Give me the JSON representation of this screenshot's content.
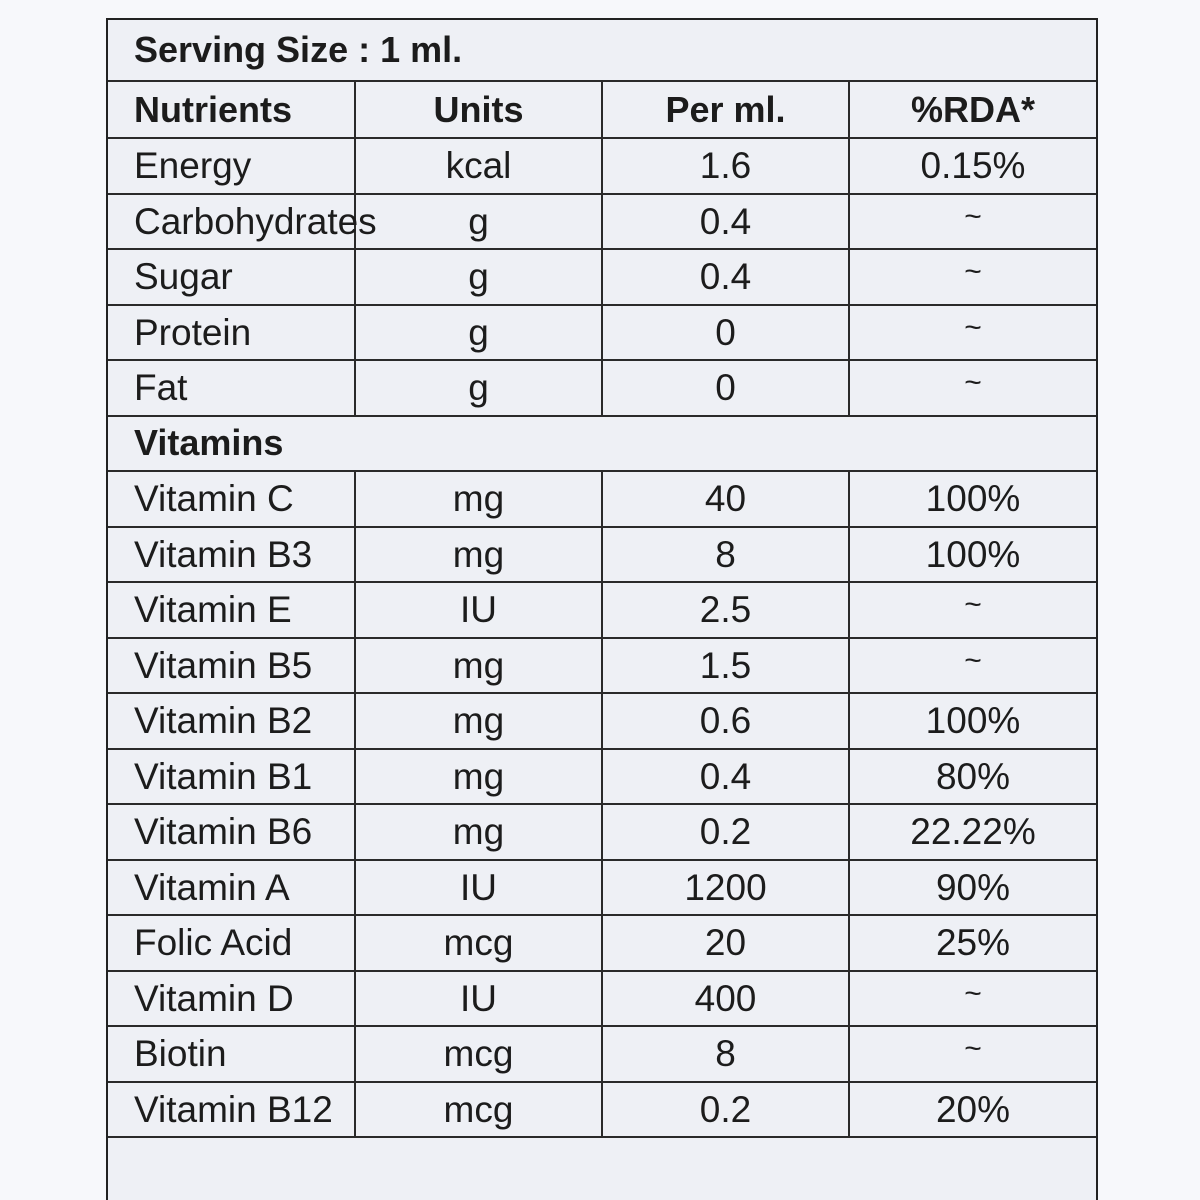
{
  "label": {
    "serving_size": "Serving Size : 1 ml.",
    "headers": {
      "nutrients": "Nutrients",
      "units": "Units",
      "per_ml": "Per ml.",
      "rda": "%RDA*"
    },
    "nutrients": [
      {
        "name": "Energy",
        "unit": "kcal",
        "per_ml": "1.6",
        "rda": "0.15%"
      },
      {
        "name": "Carbohydrates",
        "unit": "g",
        "per_ml": "0.4",
        "rda": "~"
      },
      {
        "name": "Sugar",
        "unit": "g",
        "per_ml": "0.4",
        "rda": "~"
      },
      {
        "name": "Protein",
        "unit": "g",
        "per_ml": "0",
        "rda": "~"
      },
      {
        "name": "Fat",
        "unit": "g",
        "per_ml": "0",
        "rda": "~"
      }
    ],
    "vitamins_heading": "Vitamins",
    "vitamins": [
      {
        "name": "Vitamin C",
        "unit": "mg",
        "per_ml": "40",
        "rda": "100%"
      },
      {
        "name": "Vitamin B3",
        "unit": "mg",
        "per_ml": "8",
        "rda": "100%"
      },
      {
        "name": "Vitamin E",
        "unit": "IU",
        "per_ml": "2.5",
        "rda": "~"
      },
      {
        "name": "Vitamin B5",
        "unit": "mg",
        "per_ml": "1.5",
        "rda": "~"
      },
      {
        "name": "Vitamin B2",
        "unit": "mg",
        "per_ml": "0.6",
        "rda": "100%"
      },
      {
        "name": "Vitamin B1",
        "unit": "mg",
        "per_ml": "0.4",
        "rda": "80%"
      },
      {
        "name": "Vitamin B6",
        "unit": "mg",
        "per_ml": "0.2",
        "rda": "22.22%"
      },
      {
        "name": "Vitamin A",
        "unit": "IU",
        "per_ml": "1200",
        "rda": "90%"
      },
      {
        "name": "Folic Acid",
        "unit": "mcg",
        "per_ml": "20",
        "rda": "25%"
      },
      {
        "name": "Vitamin D",
        "unit": "IU",
        "per_ml": "400",
        "rda": "~"
      },
      {
        "name": "Biotin",
        "unit": "mcg",
        "per_ml": "8",
        "rda": "~"
      },
      {
        "name": "Vitamin B12",
        "unit": "mcg",
        "per_ml": "0.2",
        "rda": "20%"
      }
    ]
  }
}
